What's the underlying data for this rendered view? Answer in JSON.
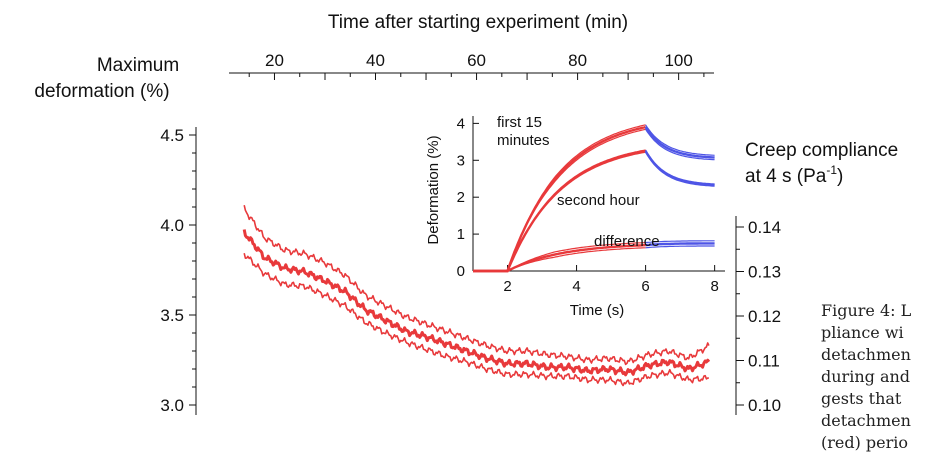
{
  "colors": {
    "red": "#e8393b",
    "blue": "#4e55e6",
    "axis": "#111111"
  },
  "chart_data": [
    {
      "type": "line",
      "title": "",
      "top_axis": {
        "label": "Time after starting experiment (min)",
        "ticks": [
          20,
          40,
          60,
          80,
          100
        ],
        "range": [
          11,
          107
        ]
      },
      "left_axis": {
        "label_lines": [
          "Maximum",
          "deformation (%)"
        ],
        "ticks": [
          "4.5",
          "4.0",
          "3.5",
          "3.0"
        ],
        "range": [
          3.0,
          4.5
        ]
      },
      "right_axis": {
        "label_line1": "Creep compliance",
        "label_line2_prefix": "at 4 s (Pa",
        "label_line2_sup": "-1",
        "label_line2_suffix": ")",
        "ticks": [
          "0.14",
          "0.13",
          "0.12",
          "0.11",
          "0.10"
        ],
        "range": [
          0.1,
          0.14
        ]
      },
      "series": [
        {
          "role": "upper-band",
          "x": [
            14,
            18,
            22,
            26,
            30,
            34,
            38,
            42,
            46,
            50,
            54,
            58,
            62,
            66,
            70,
            74,
            78,
            82,
            86,
            90,
            94,
            98,
            102,
            106
          ],
          "y": [
            4.09,
            3.93,
            3.86,
            3.84,
            3.79,
            3.72,
            3.61,
            3.55,
            3.49,
            3.45,
            3.41,
            3.37,
            3.33,
            3.3,
            3.3,
            3.28,
            3.27,
            3.25,
            3.26,
            3.24,
            3.28,
            3.3,
            3.26,
            3.33
          ]
        },
        {
          "role": "mean",
          "x": [
            14,
            18,
            22,
            26,
            30,
            34,
            38,
            42,
            46,
            50,
            54,
            58,
            62,
            66,
            70,
            74,
            78,
            82,
            86,
            90,
            94,
            98,
            102,
            106
          ],
          "y": [
            3.96,
            3.82,
            3.76,
            3.74,
            3.69,
            3.63,
            3.53,
            3.47,
            3.41,
            3.38,
            3.34,
            3.3,
            3.26,
            3.23,
            3.23,
            3.21,
            3.21,
            3.19,
            3.2,
            3.18,
            3.22,
            3.24,
            3.2,
            3.24
          ]
        },
        {
          "role": "lower-band",
          "x": [
            14,
            18,
            22,
            26,
            30,
            34,
            38,
            42,
            46,
            50,
            54,
            58,
            62,
            66,
            70,
            74,
            78,
            82,
            86,
            90,
            94,
            98,
            102,
            106
          ],
          "y": [
            3.84,
            3.73,
            3.67,
            3.66,
            3.61,
            3.55,
            3.46,
            3.4,
            3.35,
            3.31,
            3.27,
            3.24,
            3.2,
            3.17,
            3.17,
            3.16,
            3.16,
            3.14,
            3.14,
            3.12,
            3.16,
            3.18,
            3.14,
            3.15
          ]
        }
      ]
    },
    {
      "type": "line",
      "title": "",
      "xlabel": "Time (s)",
      "ylabel": "Deformation (%)",
      "x_ticks": [
        "2",
        "4",
        "6",
        "8"
      ],
      "y_ticks": [
        "0",
        "1",
        "2",
        "3",
        "4"
      ],
      "xlim": [
        1.0,
        8.3
      ],
      "ylim": [
        0,
        4.2
      ],
      "annotations": {
        "first_line1": "first 15",
        "first_line2": "minutes",
        "second": "second hour",
        "difference": "difference"
      },
      "series": [
        {
          "role": "first-15-minutes",
          "rise_to": 3.9,
          "rise_end": 6.0,
          "decay_to": 3.05,
          "band": 0.12,
          "baseline": 0.0
        },
        {
          "role": "second-hour",
          "rise_to": 3.25,
          "rise_end": 6.0,
          "decay_to": 2.3,
          "band": 0.06,
          "baseline": 0.0
        },
        {
          "role": "difference",
          "rise_to": 0.7,
          "rise_end": 6.0,
          "decay_to": 0.75,
          "band": 0.14,
          "baseline": 0.0
        }
      ]
    }
  ],
  "caption": {
    "lines": [
      "Figure 4: L",
      "pliance wi",
      "detachmen",
      "during and",
      "gests that",
      "detachmen",
      "(red) perio"
    ]
  }
}
